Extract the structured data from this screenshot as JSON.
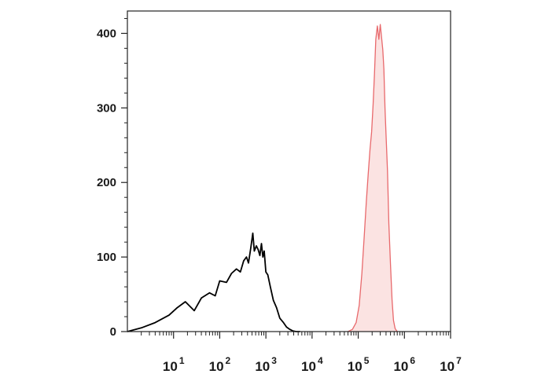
{
  "chart_data": {
    "type": "area",
    "title": "",
    "xlabel": "",
    "ylabel": "",
    "xscale": "log",
    "xlim": [
      1,
      10000000
    ],
    "ylim": [
      0,
      430
    ],
    "grid": false,
    "legend": "none",
    "x_ticks": [
      {
        "value": 10,
        "base": "10",
        "exp": "1"
      },
      {
        "value": 100,
        "base": "10",
        "exp": "2"
      },
      {
        "value": 1000,
        "base": "10",
        "exp": "3"
      },
      {
        "value": 10000,
        "base": "10",
        "exp": "4"
      },
      {
        "value": 100000,
        "base": "10",
        "exp": "5"
      },
      {
        "value": 1000000,
        "base": "10",
        "exp": "6"
      },
      {
        "value": 10000000,
        "base": "10",
        "exp": "7"
      }
    ],
    "y_ticks": [
      {
        "value": 0,
        "label": "0"
      },
      {
        "value": 100,
        "label": "100"
      },
      {
        "value": 200,
        "label": "200"
      },
      {
        "value": 300,
        "label": "300"
      },
      {
        "value": 400,
        "label": "400"
      }
    ],
    "series": [
      {
        "style": "line",
        "color": "#000000",
        "x": [
          1,
          2,
          4,
          8,
          12,
          18,
          28,
          40,
          60,
          80,
          100,
          140,
          180,
          230,
          280,
          330,
          380,
          420,
          470,
          520,
          560,
          620,
          680,
          740,
          800,
          860,
          920,
          1000,
          1100,
          1250,
          1450,
          1700,
          2000,
          2400,
          2800,
          3300,
          3800,
          4500,
          5500
        ],
        "values": [
          0,
          5,
          12,
          22,
          32,
          40,
          28,
          45,
          52,
          48,
          68,
          66,
          78,
          84,
          80,
          95,
          100,
          92,
          112,
          132,
          108,
          115,
          110,
          102,
          118,
          100,
          108,
          80,
          76,
          60,
          42,
          32,
          18,
          12,
          6,
          3,
          1,
          0,
          0
        ]
      },
      {
        "style": "filled",
        "color": "#e8696c",
        "fill": "#fbe3e2",
        "x": [
          60000,
          75000,
          90000,
          105000,
          120000,
          135000,
          150000,
          165000,
          180000,
          195000,
          210000,
          225000,
          240000,
          260000,
          280000,
          300000,
          320000,
          340000,
          360000,
          380000,
          400000,
          430000,
          460000,
          500000,
          540000,
          580000,
          630000,
          700000
        ],
        "values": [
          0,
          3,
          12,
          35,
          78,
          128,
          175,
          212,
          245,
          268,
          305,
          345,
          392,
          410,
          392,
          412,
          395,
          378,
          352,
          300,
          265,
          215,
          145,
          90,
          42,
          15,
          4,
          0
        ]
      }
    ]
  }
}
